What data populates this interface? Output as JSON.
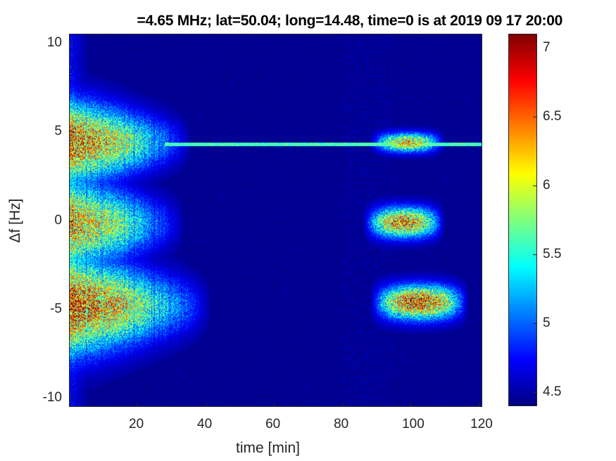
{
  "chart_data": {
    "type": "heatmap",
    "title": "=4.65 MHz;  lat=50.04; long=14.48, time=0 is at 2019 09 17 20:00",
    "xlabel": "time [min]",
    "ylabel": "Δf [Hz]",
    "xlim": [
      0,
      121
    ],
    "ylim": [
      -10.5,
      10.5
    ],
    "xticks": [
      20,
      40,
      60,
      80,
      100,
      120
    ],
    "yticks": [
      10,
      5,
      0,
      -5,
      -10
    ],
    "colormap": "jet",
    "clim": [
      4.4,
      7.1
    ],
    "colorbar_ticks": [
      7,
      6.5,
      6,
      5.5,
      5,
      4.5
    ],
    "background_level": 4.45,
    "features": [
      {
        "t_start": 0,
        "t_end": 36,
        "f_center": 4.4,
        "f_halfwidth": 2.2,
        "peak": 6.9
      },
      {
        "t_start": 0,
        "t_end": 34,
        "f_center": -0.2,
        "f_halfwidth": 2.4,
        "peak": 6.6
      },
      {
        "t_start": 0,
        "t_end": 42,
        "f_center": -4.8,
        "f_halfwidth": 2.6,
        "peak": 7.0
      },
      {
        "t_start": 88,
        "t_end": 110,
        "f_center": 4.4,
        "f_halfwidth": 0.5,
        "peak": 6.4
      },
      {
        "t_start": 86,
        "t_end": 110,
        "f_center": -0.1,
        "f_halfwidth": 0.8,
        "peak": 6.7
      },
      {
        "t_start": 88,
        "t_end": 117,
        "f_center": -4.6,
        "f_halfwidth": 0.9,
        "peak": 6.9
      }
    ],
    "carrier_line": {
      "f": 4.3,
      "t_start": 28,
      "t_end": 121,
      "level": 5.6
    }
  }
}
